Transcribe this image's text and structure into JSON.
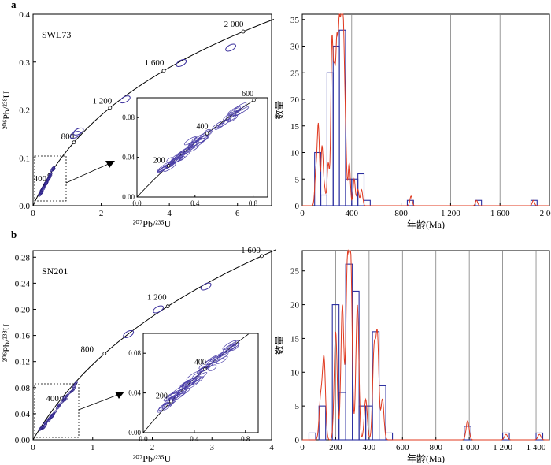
{
  "chart_data": [
    {
      "type": "scatter",
      "panel_label": "a",
      "sample": "SWL73",
      "xlabel": "²⁰⁷Pb/²³⁵U",
      "ylabel": "²⁰⁶Pb/²³⁸U",
      "xlim": [
        0,
        7
      ],
      "ylim": [
        0,
        0.4
      ],
      "xticks": [
        "0",
        "2",
        "4",
        "6"
      ],
      "yticks": [
        "0.0",
        "0.1",
        "0.2",
        "0.3",
        "0.4"
      ],
      "concordia_age_labels": [
        "400",
        "800",
        "1 200",
        "1 600",
        "2 000"
      ],
      "big_ellipses": [
        [
          1.24,
          0.148
        ],
        [
          1.33,
          0.155
        ],
        [
          2.7,
          0.222
        ],
        [
          4.35,
          0.298
        ],
        [
          5.8,
          0.33
        ]
      ],
      "cluster": {
        "x": [
          0.18,
          0.62
        ],
        "y": [
          0.02,
          0.08
        ]
      },
      "inset": {
        "xlim": [
          0,
          0.9
        ],
        "ylim": [
          0,
          0.1
        ],
        "xticks": [
          "0.0",
          "0.4",
          "0.8"
        ],
        "yticks": [
          "0.00",
          "0.04",
          "0.08"
        ],
        "labels": [
          "200",
          "400",
          "600"
        ]
      }
    },
    {
      "type": "bar",
      "panel_label": "",
      "xlabel": "年龄(Ma)",
      "ylabel": "数量",
      "xlim": [
        0,
        2000
      ],
      "ylim": [
        0,
        36
      ],
      "xticks": [
        "0",
        "400",
        "800",
        "1 200",
        "1 600",
        "2 000"
      ],
      "yticks": [
        "0",
        "5",
        "10",
        "15",
        "20",
        "25",
        "30",
        "35"
      ],
      "bins_start": [
        100,
        150,
        200,
        250,
        300,
        350,
        400,
        450,
        500,
        850,
        1400,
        1850
      ],
      "bin_width": 50,
      "counts": [
        10,
        2,
        25,
        30,
        33,
        5,
        5,
        6,
        1,
        1,
        1,
        1
      ],
      "kde_peaks": [
        [
          110,
          6
        ],
        [
          130,
          15
        ],
        [
          160,
          11
        ],
        [
          180,
          3
        ],
        [
          210,
          8
        ],
        [
          240,
          30
        ],
        [
          260,
          22
        ],
        [
          280,
          28
        ],
        [
          300,
          31
        ],
        [
          320,
          34
        ],
        [
          335,
          22
        ],
        [
          350,
          11
        ],
        [
          380,
          8
        ],
        [
          420,
          5
        ],
        [
          450,
          3
        ],
        [
          480,
          3
        ],
        [
          880,
          1.8
        ],
        [
          1410,
          1
        ],
        [
          1870,
          1
        ]
      ]
    },
    {
      "type": "scatter",
      "panel_label": "b",
      "sample": "SN201",
      "xlabel": "²⁰⁷Pb/²³⁵U",
      "ylabel": "²⁰⁶Pb/²³⁸U",
      "xlim": [
        0,
        4
      ],
      "ylim": [
        0,
        0.29
      ],
      "xticks": [
        "0",
        "1",
        "2",
        "3",
        "4"
      ],
      "yticks": [
        "0.00",
        "0.04",
        "0.08",
        "0.12",
        "0.16",
        "0.20",
        "0.24",
        "0.28"
      ],
      "concordia_age_labels": [
        "400",
        "800",
        "1 200",
        "1 600"
      ],
      "big_ellipses": [
        [
          1.6,
          0.162
        ],
        [
          2.1,
          0.2
        ],
        [
          2.9,
          0.235
        ]
      ],
      "cluster": {
        "x": [
          0.12,
          0.72
        ],
        "y": [
          0.015,
          0.085
        ]
      },
      "inset": {
        "xlim": [
          0,
          0.9
        ],
        "ylim": [
          0,
          0.1
        ],
        "xticks": [
          "0.0",
          "0.4",
          "0.8"
        ],
        "yticks": [
          "0.00",
          "0.04",
          "0.08"
        ],
        "labels": [
          "200",
          "400"
        ]
      }
    },
    {
      "type": "bar",
      "panel_label": "",
      "xlabel": "年龄(Ma)",
      "ylabel": "数量",
      "xlim": [
        0,
        1480
      ],
      "ylim": [
        0,
        28
      ],
      "xticks": [
        "0",
        "200",
        "400",
        "600",
        "800",
        "1 000",
        "1 200",
        "1 400"
      ],
      "yticks": [
        "0",
        "5",
        "10",
        "15",
        "20",
        "25"
      ],
      "bins_start": [
        40,
        100,
        180,
        220,
        260,
        300,
        340,
        380,
        420,
        460,
        500,
        970,
        1200,
        1400
      ],
      "bin_width": 40,
      "counts": [
        1,
        5,
        20,
        7,
        26,
        22,
        5,
        5,
        16,
        8,
        1,
        2,
        1,
        1
      ],
      "kde_peaks": [
        [
          110,
          6
        ],
        [
          130,
          12
        ],
        [
          200,
          16
        ],
        [
          240,
          20
        ],
        [
          270,
          25
        ],
        [
          290,
          26
        ],
        [
          330,
          20
        ],
        [
          380,
          6
        ],
        [
          430,
          13
        ],
        [
          450,
          15
        ],
        [
          480,
          6
        ],
        [
          990,
          2.8
        ],
        [
          1220,
          0.8
        ],
        [
          1420,
          0.8
        ]
      ]
    }
  ]
}
